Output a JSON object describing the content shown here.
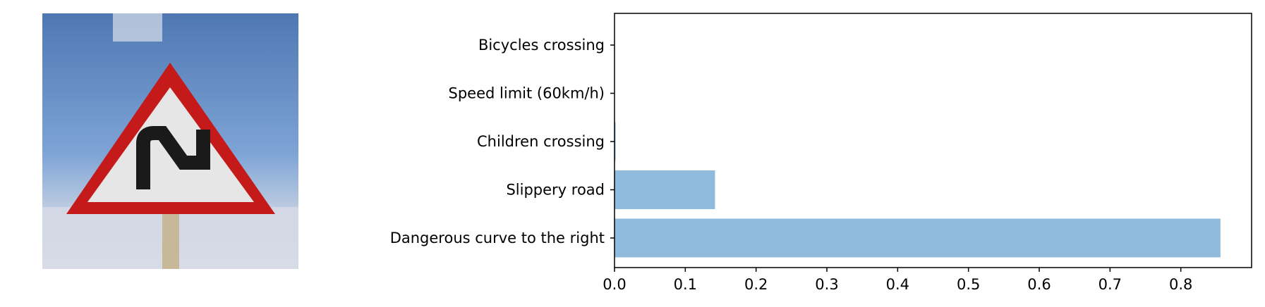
{
  "chart_data": {
    "type": "bar",
    "orientation": "horizontal",
    "categories": [
      "Bicycles crossing",
      "Speed limit (60km/h)",
      "Children crossing",
      "Slippery road",
      "Dangerous curve to the right"
    ],
    "values": [
      0.0,
      0.0,
      0.0015,
      0.142,
      0.856
    ],
    "xlim": [
      0,
      0.9
    ],
    "x_ticks": [
      "0.0",
      "0.1",
      "0.2",
      "0.3",
      "0.4",
      "0.5",
      "0.6",
      "0.7",
      "0.8"
    ],
    "title": "",
    "xlabel": "",
    "ylabel": "",
    "bar_color": "#8fbadb",
    "grid": false,
    "legend": "none"
  },
  "image": {
    "icon": "dangerous-curve-right-sign-icon",
    "colors": {
      "sky": "#6b93c8",
      "sign_red": "#c41a1a",
      "sign_white": "#e6e6e6",
      "symbol": "#1a1a1a"
    }
  }
}
